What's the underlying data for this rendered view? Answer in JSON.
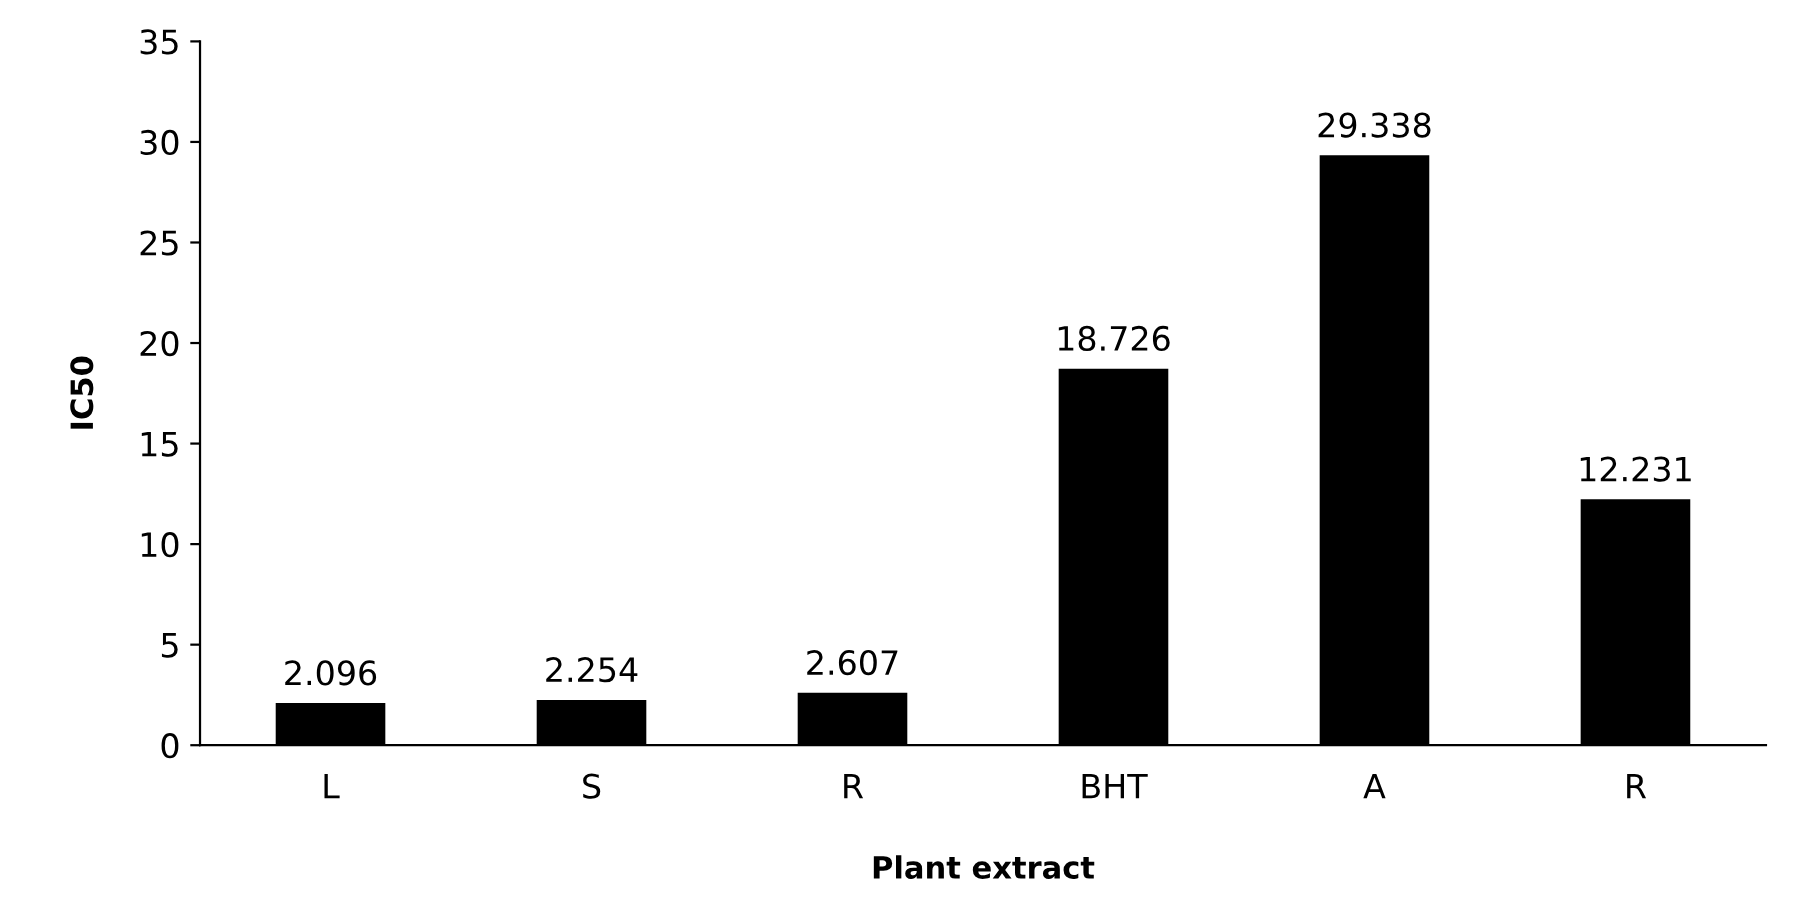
{
  "chart_data": {
    "type": "bar",
    "xlabel": "Plant extract",
    "ylabel": "IC50",
    "categories": [
      "L",
      "S",
      "R",
      "BHT",
      "A",
      "R"
    ],
    "values": [
      2.096,
      2.254,
      2.607,
      18.726,
      29.338,
      12.231
    ],
    "color": "#000000",
    "ylim": [
      0,
      35
    ],
    "yticks": [
      0,
      5,
      10,
      15,
      20,
      25,
      30,
      35
    ],
    "grid": false,
    "data_labels": true
  }
}
